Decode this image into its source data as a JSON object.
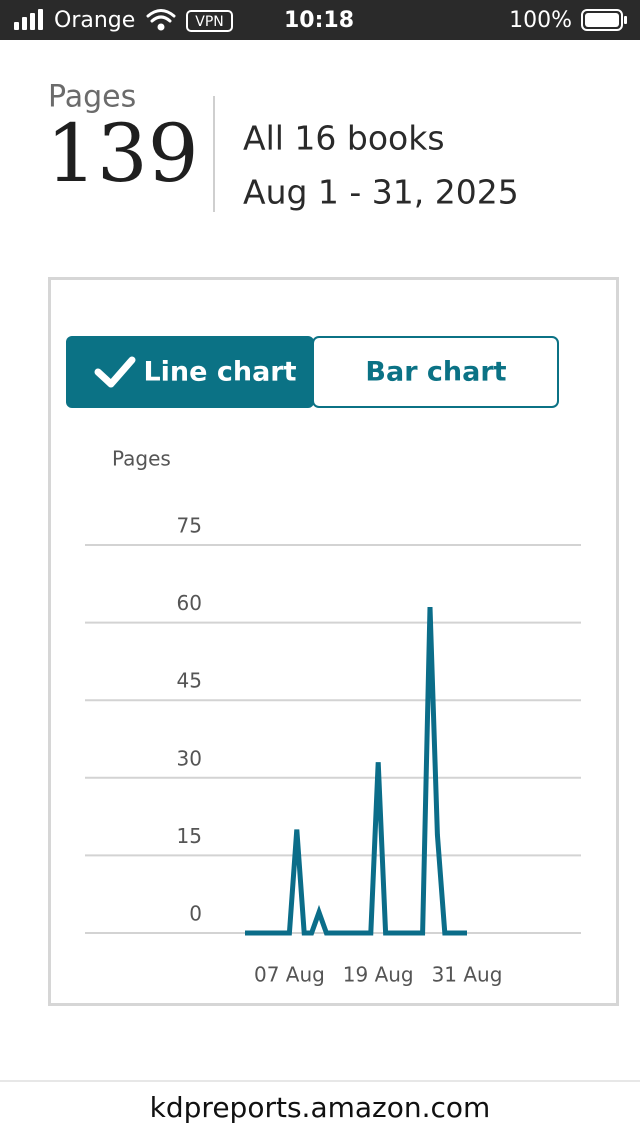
{
  "status_bar": {
    "carrier": "Orange",
    "vpn": "VPN",
    "time": "10:18",
    "battery": "100%"
  },
  "summary": {
    "label": "Pages",
    "value": 139,
    "books": "All 16 books",
    "date_range": "Aug 1 - 31, 2025"
  },
  "toggle": {
    "line": "Line chart",
    "bar": "Bar chart"
  },
  "chart_data": {
    "type": "line",
    "y_label": "Pages",
    "categories": [
      null,
      null,
      null,
      null,
      null,
      null,
      "07 Aug",
      null,
      null,
      null,
      null,
      null,
      null,
      null,
      null,
      null,
      null,
      null,
      "19 Aug",
      null,
      null,
      null,
      null,
      null,
      null,
      null,
      null,
      null,
      null,
      null,
      "31 Aug"
    ],
    "values": [
      0,
      0,
      0,
      0,
      0,
      0,
      0,
      20,
      0,
      0,
      4,
      0,
      0,
      0,
      0,
      0,
      0,
      0,
      33,
      0,
      0,
      0,
      0,
      0,
      0,
      63,
      19,
      0,
      0,
      0,
      0
    ],
    "color": "#0b6d89",
    "ylim": [
      0,
      75
    ],
    "yticks": [
      0,
      15,
      30,
      45,
      60,
      75
    ],
    "grid": true
  },
  "url": "kdpreports.amazon.com"
}
